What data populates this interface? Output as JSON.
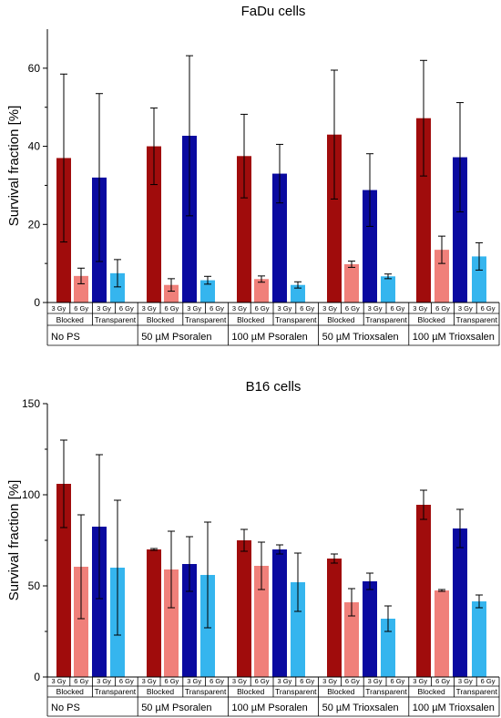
{
  "chart_data": [
    {
      "type": "bar",
      "title": "FaDu cells",
      "ylabel": "Survival fraction [%]",
      "ylim": [
        0,
        70
      ],
      "yticks": [
        0,
        20,
        40,
        60
      ],
      "groups": [
        "No PS",
        "50 µM Psoralen",
        "100 µM Psoralen",
        "50 µM Trioxsalen",
        "100 µM Trioxsalen"
      ],
      "subgroups": [
        "Blocked",
        "Transparent"
      ],
      "doses": [
        "3 Gy",
        "6 Gy"
      ],
      "colors": {
        "blocked_3": "#a00c0c",
        "blocked_6": "#f0807a",
        "transparent_3": "#0a0aa0",
        "transparent_6": "#35b5ee"
      },
      "bars": [
        {
          "group": "No PS",
          "condition": "Blocked",
          "dose": "3 Gy",
          "value": 37,
          "error": 21.5
        },
        {
          "group": "No PS",
          "condition": "Blocked",
          "dose": "6 Gy",
          "value": 6.8,
          "error": 2.0
        },
        {
          "group": "No PS",
          "condition": "Transparent",
          "dose": "3 Gy",
          "value": 32,
          "error": 21.5
        },
        {
          "group": "No PS",
          "condition": "Transparent",
          "dose": "6 Gy",
          "value": 7.5,
          "error": 3.5
        },
        {
          "group": "50 µM Psoralen",
          "condition": "Blocked",
          "dose": "3 Gy",
          "value": 40,
          "error": 9.8
        },
        {
          "group": "50 µM Psoralen",
          "condition": "Blocked",
          "dose": "6 Gy",
          "value": 4.5,
          "error": 1.6
        },
        {
          "group": "50 µM Psoralen",
          "condition": "Transparent",
          "dose": "3 Gy",
          "value": 42.7,
          "error": 20.5
        },
        {
          "group": "50 µM Psoralen",
          "condition": "Transparent",
          "dose": "6 Gy",
          "value": 5.7,
          "error": 1.0
        },
        {
          "group": "100 µM Psoralen",
          "condition": "Blocked",
          "dose": "3 Gy",
          "value": 37.5,
          "error": 10.7
        },
        {
          "group": "100 µM Psoralen",
          "condition": "Blocked",
          "dose": "6 Gy",
          "value": 6.0,
          "error": 0.8
        },
        {
          "group": "100 µM Psoralen",
          "condition": "Transparent",
          "dose": "3 Gy",
          "value": 33,
          "error": 7.5
        },
        {
          "group": "100 µM Psoralen",
          "condition": "Transparent",
          "dose": "6 Gy",
          "value": 4.5,
          "error": 0.8
        },
        {
          "group": "50 µM Trioxsalen",
          "condition": "Blocked",
          "dose": "3 Gy",
          "value": 43,
          "error": 16.5
        },
        {
          "group": "50 µM Trioxsalen",
          "condition": "Blocked",
          "dose": "6 Gy",
          "value": 9.8,
          "error": 0.8
        },
        {
          "group": "50 µM Trioxsalen",
          "condition": "Transparent",
          "dose": "3 Gy",
          "value": 28.8,
          "error": 9.3
        },
        {
          "group": "50 µM Trioxsalen",
          "condition": "Transparent",
          "dose": "6 Gy",
          "value": 6.7,
          "error": 0.6
        },
        {
          "group": "100 µM Trioxsalen",
          "condition": "Blocked",
          "dose": "3 Gy",
          "value": 47.2,
          "error": 14.8
        },
        {
          "group": "100 µM Trioxsalen",
          "condition": "Blocked",
          "dose": "6 Gy",
          "value": 13.5,
          "error": 3.5
        },
        {
          "group": "100 µM Trioxsalen",
          "condition": "Transparent",
          "dose": "3 Gy",
          "value": 37.2,
          "error": 14.0
        },
        {
          "group": "100 µM Trioxsalen",
          "condition": "Transparent",
          "dose": "6 Gy",
          "value": 11.8,
          "error": 3.5
        }
      ]
    },
    {
      "type": "bar",
      "title": "B16 cells",
      "ylabel": "Survival fraction [%]",
      "ylim": [
        0,
        150
      ],
      "yticks": [
        0,
        50,
        100,
        150
      ],
      "groups": [
        "No PS",
        "50 µM Psoralen",
        "100 µM Psoralen",
        "50 µM Trioxsalen",
        "100 µM Trioxsalen"
      ],
      "subgroups": [
        "Blocked",
        "Transparent"
      ],
      "doses": [
        "3 Gy",
        "6 Gy"
      ],
      "colors": {
        "blocked_3": "#a00c0c",
        "blocked_6": "#f0807a",
        "transparent_3": "#0a0aa0",
        "transparent_6": "#35b5ee"
      },
      "bars": [
        {
          "group": "No PS",
          "condition": "Blocked",
          "dose": "3 Gy",
          "value": 106,
          "error": 24
        },
        {
          "group": "No PS",
          "condition": "Blocked",
          "dose": "6 Gy",
          "value": 60.5,
          "error": 28.5
        },
        {
          "group": "No PS",
          "condition": "Transparent",
          "dose": "3 Gy",
          "value": 82.5,
          "error": 39.5
        },
        {
          "group": "No PS",
          "condition": "Transparent",
          "dose": "6 Gy",
          "value": 60,
          "error": 37
        },
        {
          "group": "50 µM Psoralen",
          "condition": "Blocked",
          "dose": "3 Gy",
          "value": 70,
          "error": 0.5
        },
        {
          "group": "50 µM Psoralen",
          "condition": "Blocked",
          "dose": "6 Gy",
          "value": 59,
          "error": 21
        },
        {
          "group": "50 µM Psoralen",
          "condition": "Transparent",
          "dose": "3 Gy",
          "value": 62,
          "error": 15
        },
        {
          "group": "50 µM Psoralen",
          "condition": "Transparent",
          "dose": "6 Gy",
          "value": 56,
          "error": 29
        },
        {
          "group": "100 µM Psoralen",
          "condition": "Blocked",
          "dose": "3 Gy",
          "value": 75,
          "error": 6
        },
        {
          "group": "100 µM Psoralen",
          "condition": "Blocked",
          "dose": "6 Gy",
          "value": 61,
          "error": 13
        },
        {
          "group": "100 µM Psoralen",
          "condition": "Transparent",
          "dose": "3 Gy",
          "value": 70,
          "error": 2.5
        },
        {
          "group": "100 µM Psoralen",
          "condition": "Transparent",
          "dose": "6 Gy",
          "value": 52,
          "error": 16
        },
        {
          "group": "50 µM Trioxsalen",
          "condition": "Blocked",
          "dose": "3 Gy",
          "value": 65,
          "error": 2.5
        },
        {
          "group": "50 µM Trioxsalen",
          "condition": "Blocked",
          "dose": "6 Gy",
          "value": 41,
          "error": 7.5
        },
        {
          "group": "50 µM Trioxsalen",
          "condition": "Transparent",
          "dose": "3 Gy",
          "value": 52.5,
          "error": 4.5
        },
        {
          "group": "50 µM Trioxsalen",
          "condition": "Transparent",
          "dose": "6 Gy",
          "value": 32,
          "error": 7
        },
        {
          "group": "100 µM Trioxsalen",
          "condition": "Blocked",
          "dose": "3 Gy",
          "value": 94.5,
          "error": 8
        },
        {
          "group": "100 µM Trioxsalen",
          "condition": "Blocked",
          "dose": "6 Gy",
          "value": 47.5,
          "error": 0.5
        },
        {
          "group": "100 µM Trioxsalen",
          "condition": "Transparent",
          "dose": "3 Gy",
          "value": 81.5,
          "error": 10.5
        },
        {
          "group": "100 µM Trioxsalen",
          "condition": "Transparent",
          "dose": "6 Gy",
          "value": 41.5,
          "error": 3.5
        }
      ]
    }
  ]
}
